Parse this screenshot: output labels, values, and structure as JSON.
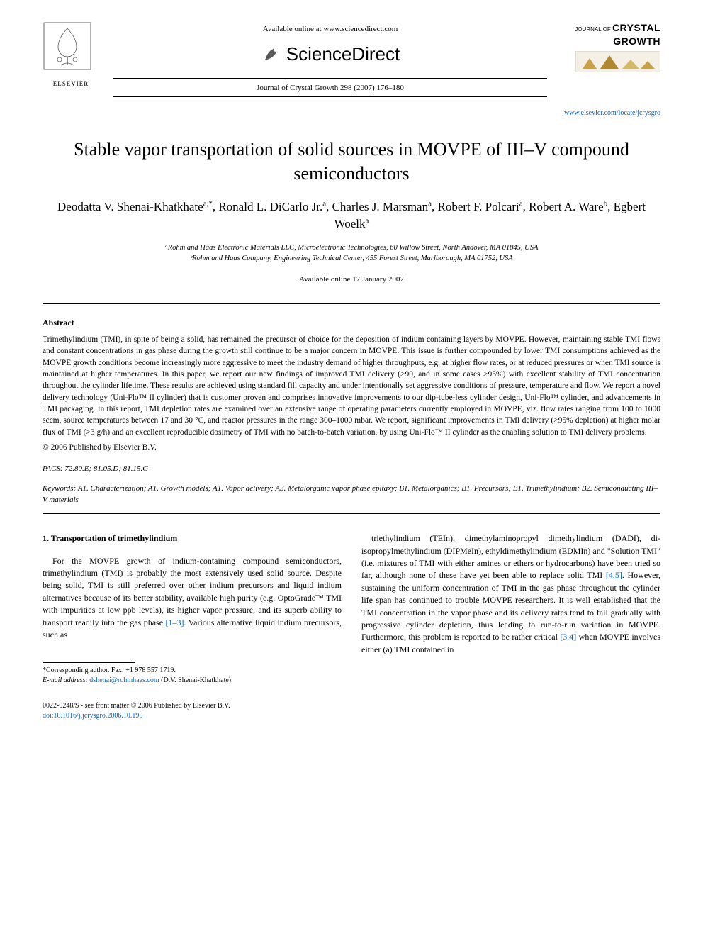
{
  "header": {
    "publisher_name": "ELSEVIER",
    "available_text": "Available online at www.sciencedirect.com",
    "sciencedirect_label": "ScienceDirect",
    "journal_ref": "Journal of Crystal Growth 298 (2007) 176–180",
    "journal_logo_prefix": "JOURNAL OF",
    "journal_logo_main": "CRYSTAL GROWTH",
    "journal_url": "www.elsevier.com/locate/jcrysgro"
  },
  "article": {
    "title": "Stable vapor transportation of solid sources in MOVPE of III–V compound semiconductors",
    "authors_html": "Deodatta V. Shenai-Khatkhate<sup>a,*</sup>, Ronald L. DiCarlo Jr.<sup>a</sup>, Charles J. Marsman<sup>a</sup>, Robert F. Polcari<sup>a</sup>, Robert A. Ware<sup>b</sup>, Egbert Woelk<sup>a</sup>",
    "affiliations": [
      "ᵃRohm and Haas Electronic Materials LLC, Microelectronic Technologies, 60 Willow Street, North Andover, MA 01845, USA",
      "ᵇRohm and Haas Company, Engineering Technical Center, 455 Forest Street, Marlborough, MA 01752, USA"
    ],
    "available_date": "Available online 17 January 2007"
  },
  "abstract": {
    "heading": "Abstract",
    "body": "Trimethylindium (TMI), in spite of being a solid, has remained the precursor of choice for the deposition of indium containing layers by MOVPE. However, maintaining stable TMI flows and constant concentrations in gas phase during the growth still continue to be a major concern in MOVPE. This issue is further compounded by lower TMI consumptions achieved as the MOVPE growth conditions become increasingly more aggressive to meet the industry demand of higher throughputs, e.g. at higher flow rates, or at reduced pressures or when TMI source is maintained at higher temperatures. In this paper, we report our new findings of improved TMI delivery (>90, and in some cases >95%) with excellent stability of TMI concentration throughout the cylinder lifetime. These results are achieved using standard fill capacity and under intentionally set aggressive conditions of pressure, temperature and flow. We report a novel delivery technology (Uni-Flo™ II cylinder) that is customer proven and comprises innovative improvements to our dip-tube-less cylinder design, Uni-Flo™ cylinder, and advancements in TMI packaging. In this report, TMI depletion rates are examined over an extensive range of operating parameters currently employed in MOVPE, viz. flow rates ranging from 100 to 1000 sccm, source temperatures between 17 and 30 °C, and reactor pressures in the range 300–1000 mbar. We report, significant improvements in TMI delivery (>95% depletion) at higher molar flux of TMI (>3 g/h) and an excellent reproducible dosimetry of TMI with no batch-to-batch variation, by using Uni-Flo™ II cylinder as the enabling solution to TMI delivery problems.",
    "copyright": "© 2006 Published by Elsevier B.V."
  },
  "pacs": {
    "label": "PACS:",
    "codes": "72.80.E; 81.05.D; 81.15.G"
  },
  "keywords": {
    "label": "Keywords:",
    "text": "A1. Characterization; A1. Growth models; A1. Vapor delivery; A3. Metalorganic vapor phase epitaxy; B1. Metalorganics; B1. Precursors; B1. Trimethylindium; B2. Semiconducting III–V materials"
  },
  "body": {
    "section_number": "1.",
    "section_title": "Transportation of trimethylindium",
    "col1": "For the MOVPE growth of indium-containing compound semiconductors, trimethylindium (TMI) is probably the most extensively used solid source. Despite being solid, TMI is still preferred over other indium precursors and liquid indium alternatives because of its better stability, available high purity (e.g. OptoGrade™ TMI with impurities at low ppb levels), its higher vapor pressure, and its superb ability to transport readily into the gas phase [1–3]. Various alternative liquid indium precursors, such as",
    "col2": "triethylindium (TEIn), dimethylaminopropyl dimethylindium (DADI), di-isopropylmethylindium (DIPMeIn), ethyldimethylindium (EDMIn) and \"Solution TMI\" (i.e. mixtures of TMI with either amines or ethers or hydrocarbons) have been tried so far, although none of these have yet been able to replace solid TMI [4,5]. However, sustaining the uniform concentration of TMI in the gas phase throughout the cylinder life span has continued to trouble MOVPE researchers. It is well established that the TMI concentration in the vapor phase and its delivery rates tend to fall gradually with progressive cylinder depletion, thus leading to run-to-run variation in MOVPE. Furthermore, this problem is reported to be rather critical [3,4] when MOVPE involves either (a) TMI contained in",
    "ref_1_3": "[1–3]",
    "ref_4_5": "[4,5]",
    "ref_3_4": "[3,4]"
  },
  "footnote": {
    "corresponding": "*Corresponding author. Fax: +1 978 557 1719.",
    "email_label": "E-mail address:",
    "email": "dshenai@rohmhaas.com",
    "email_attribution": "(D.V. Shenai-Khatkhate)."
  },
  "footer": {
    "line1": "0022-0248/$ - see front matter © 2006 Published by Elsevier B.V.",
    "doi": "doi:10.1016/j.jcrysgro.2006.10.195"
  },
  "colors": {
    "link": "#0066cc",
    "text": "#000000",
    "background": "#ffffff",
    "elsevier_orange": "#e67817"
  }
}
